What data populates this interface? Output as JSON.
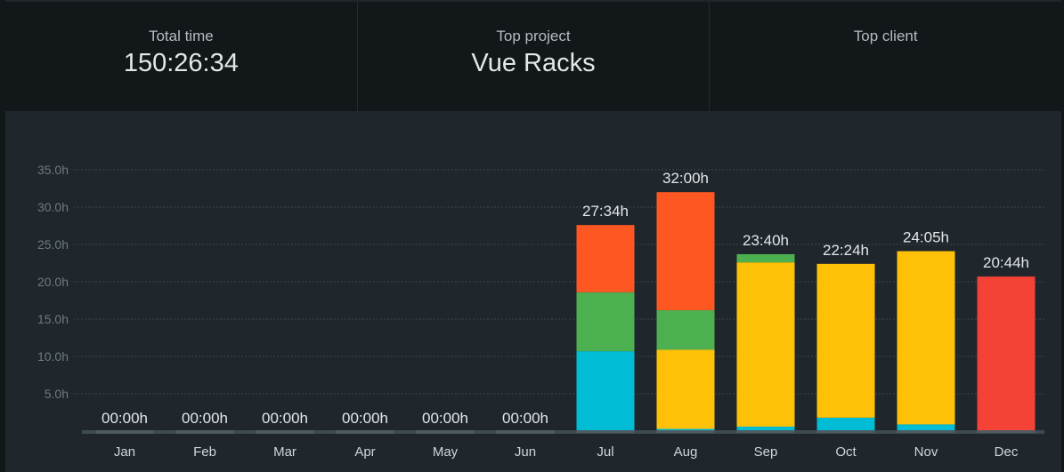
{
  "summary": [
    {
      "label": "Total time",
      "value": "150:26:34"
    },
    {
      "label": "Top project",
      "value": "Vue Racks"
    },
    {
      "label": "Top client",
      "value": ""
    }
  ],
  "colors": {
    "page_bg": "#1f262c",
    "panel_bg": "#121719",
    "baseline": "#3e4a52",
    "empty_bar": "#4f5b63",
    "cyan": "#00bcd4",
    "green": "#4caf50",
    "orange": "#ff5722",
    "yellow": "#ffc107",
    "red": "#f44336",
    "tick_text": "#6d7a82",
    "label_text": "#e3e7ea",
    "month_text": "#cfd6db"
  },
  "chart_data": {
    "type": "bar",
    "stacked": true,
    "title": "",
    "xlabel": "",
    "ylabel": "",
    "ylim": [
      0,
      35
    ],
    "y_ticks": [
      "5.0h",
      "10.0h",
      "15.0h",
      "20.0h",
      "25.0h",
      "30.0h",
      "35.0h"
    ],
    "y_tick_values": [
      5,
      10,
      15,
      20,
      25,
      30,
      35
    ],
    "grid": true,
    "categories": [
      "Jan",
      "Feb",
      "Mar",
      "Apr",
      "May",
      "Jun",
      "Jul",
      "Aug",
      "Sep",
      "Oct",
      "Nov",
      "Dec"
    ],
    "totals": [
      "00:00h",
      "00:00h",
      "00:00h",
      "00:00h",
      "00:00h",
      "00:00h",
      "27:34h",
      "32:00h",
      "23:40h",
      "22:24h",
      "24:05h",
      "20:44h"
    ],
    "series": [
      {
        "color": "#00bcd4",
        "values": [
          0,
          0,
          0,
          0,
          0,
          0,
          10.7,
          0.3,
          0.6,
          1.8,
          0.9,
          0
        ]
      },
      {
        "color": "#ffc107",
        "values": [
          0,
          0,
          0,
          0,
          0,
          0,
          0,
          10.6,
          22.0,
          20.6,
          23.2,
          0
        ]
      },
      {
        "color": "#4caf50",
        "values": [
          0,
          0,
          0,
          0,
          0,
          0,
          7.9,
          5.3,
          1.1,
          0,
          0,
          0
        ]
      },
      {
        "color": "#ff5722",
        "values": [
          0,
          0,
          0,
          0,
          0,
          0,
          9.0,
          15.8,
          0,
          0,
          0,
          0
        ]
      },
      {
        "color": "#f44336",
        "values": [
          0,
          0,
          0,
          0,
          0,
          0,
          0,
          0,
          0,
          0,
          0,
          20.7
        ]
      }
    ]
  }
}
